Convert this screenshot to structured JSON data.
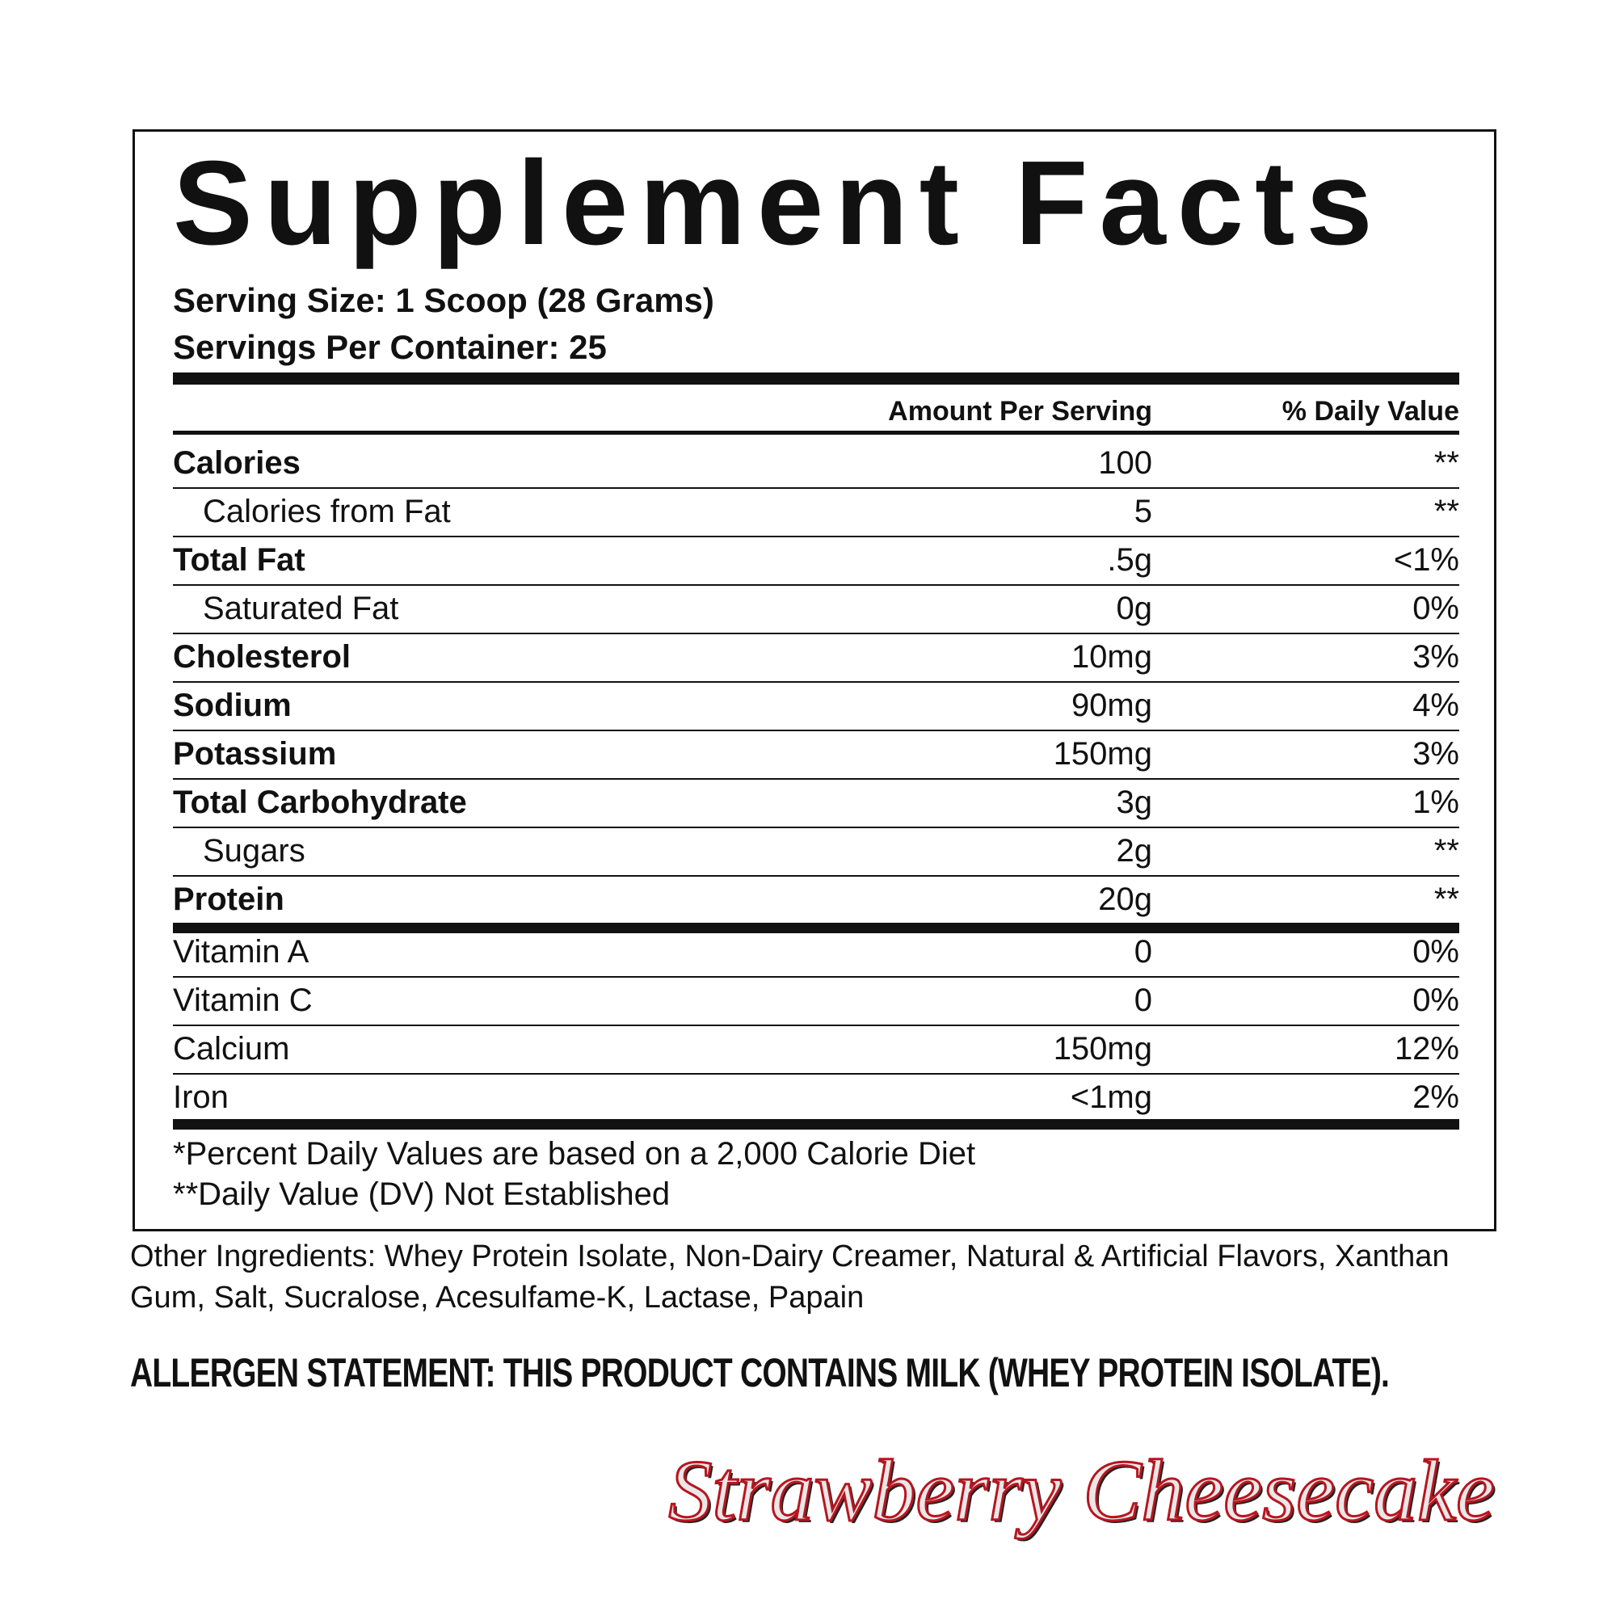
{
  "header": {
    "title": "Supplement Facts",
    "serving_size": "Serving Size: 1 Scoop (28 Grams)",
    "servings_per_container": "Servings Per Container: 25"
  },
  "table": {
    "columns": [
      "Amount Per Serving",
      "% Daily Value"
    ],
    "rows": [
      [
        "Calories",
        "100",
        "**"
      ],
      [
        "Calories from Fat",
        "5",
        "**"
      ],
      [
        "Total Fat",
        ".5g",
        "<1%"
      ],
      [
        "Saturated Fat",
        "0g",
        "0%"
      ],
      [
        "Cholesterol",
        "10mg",
        "3%"
      ],
      [
        "Sodium",
        "90mg",
        "4%"
      ],
      [
        "Potassium",
        "150mg",
        "3%"
      ],
      [
        "Total Carbohydrate",
        "3g",
        "1%"
      ],
      [
        "Sugars",
        "2g",
        "**"
      ],
      [
        "Protein",
        "20g",
        "**"
      ]
    ],
    "vitamins": [
      [
        "Vitamin A",
        "0",
        "0%"
      ],
      [
        "Vitamin C",
        "0",
        "0%"
      ],
      [
        "Calcium",
        "150mg",
        "12%"
      ],
      [
        "Iron",
        "<1mg",
        "2%"
      ]
    ]
  },
  "footnotes": [
    "*Percent Daily Values are based on a 2,000 Calorie Diet",
    "**Daily Value (DV) Not Established"
  ],
  "other_ingredients": "Other Ingredients: Whey Protein Isolate, Non-Dairy Creamer, Natural & Artificial Flavors, Xanthan Gum, Salt, Sucralose, Acesulfame-K, Lactase, Papain",
  "allergen": "ALLERGEN STATEMENT: THIS PRODUCT CONTAINS MILK (WHEY PROTEIN ISOLATE).",
  "flavor": "Strawberry Cheesecake"
}
